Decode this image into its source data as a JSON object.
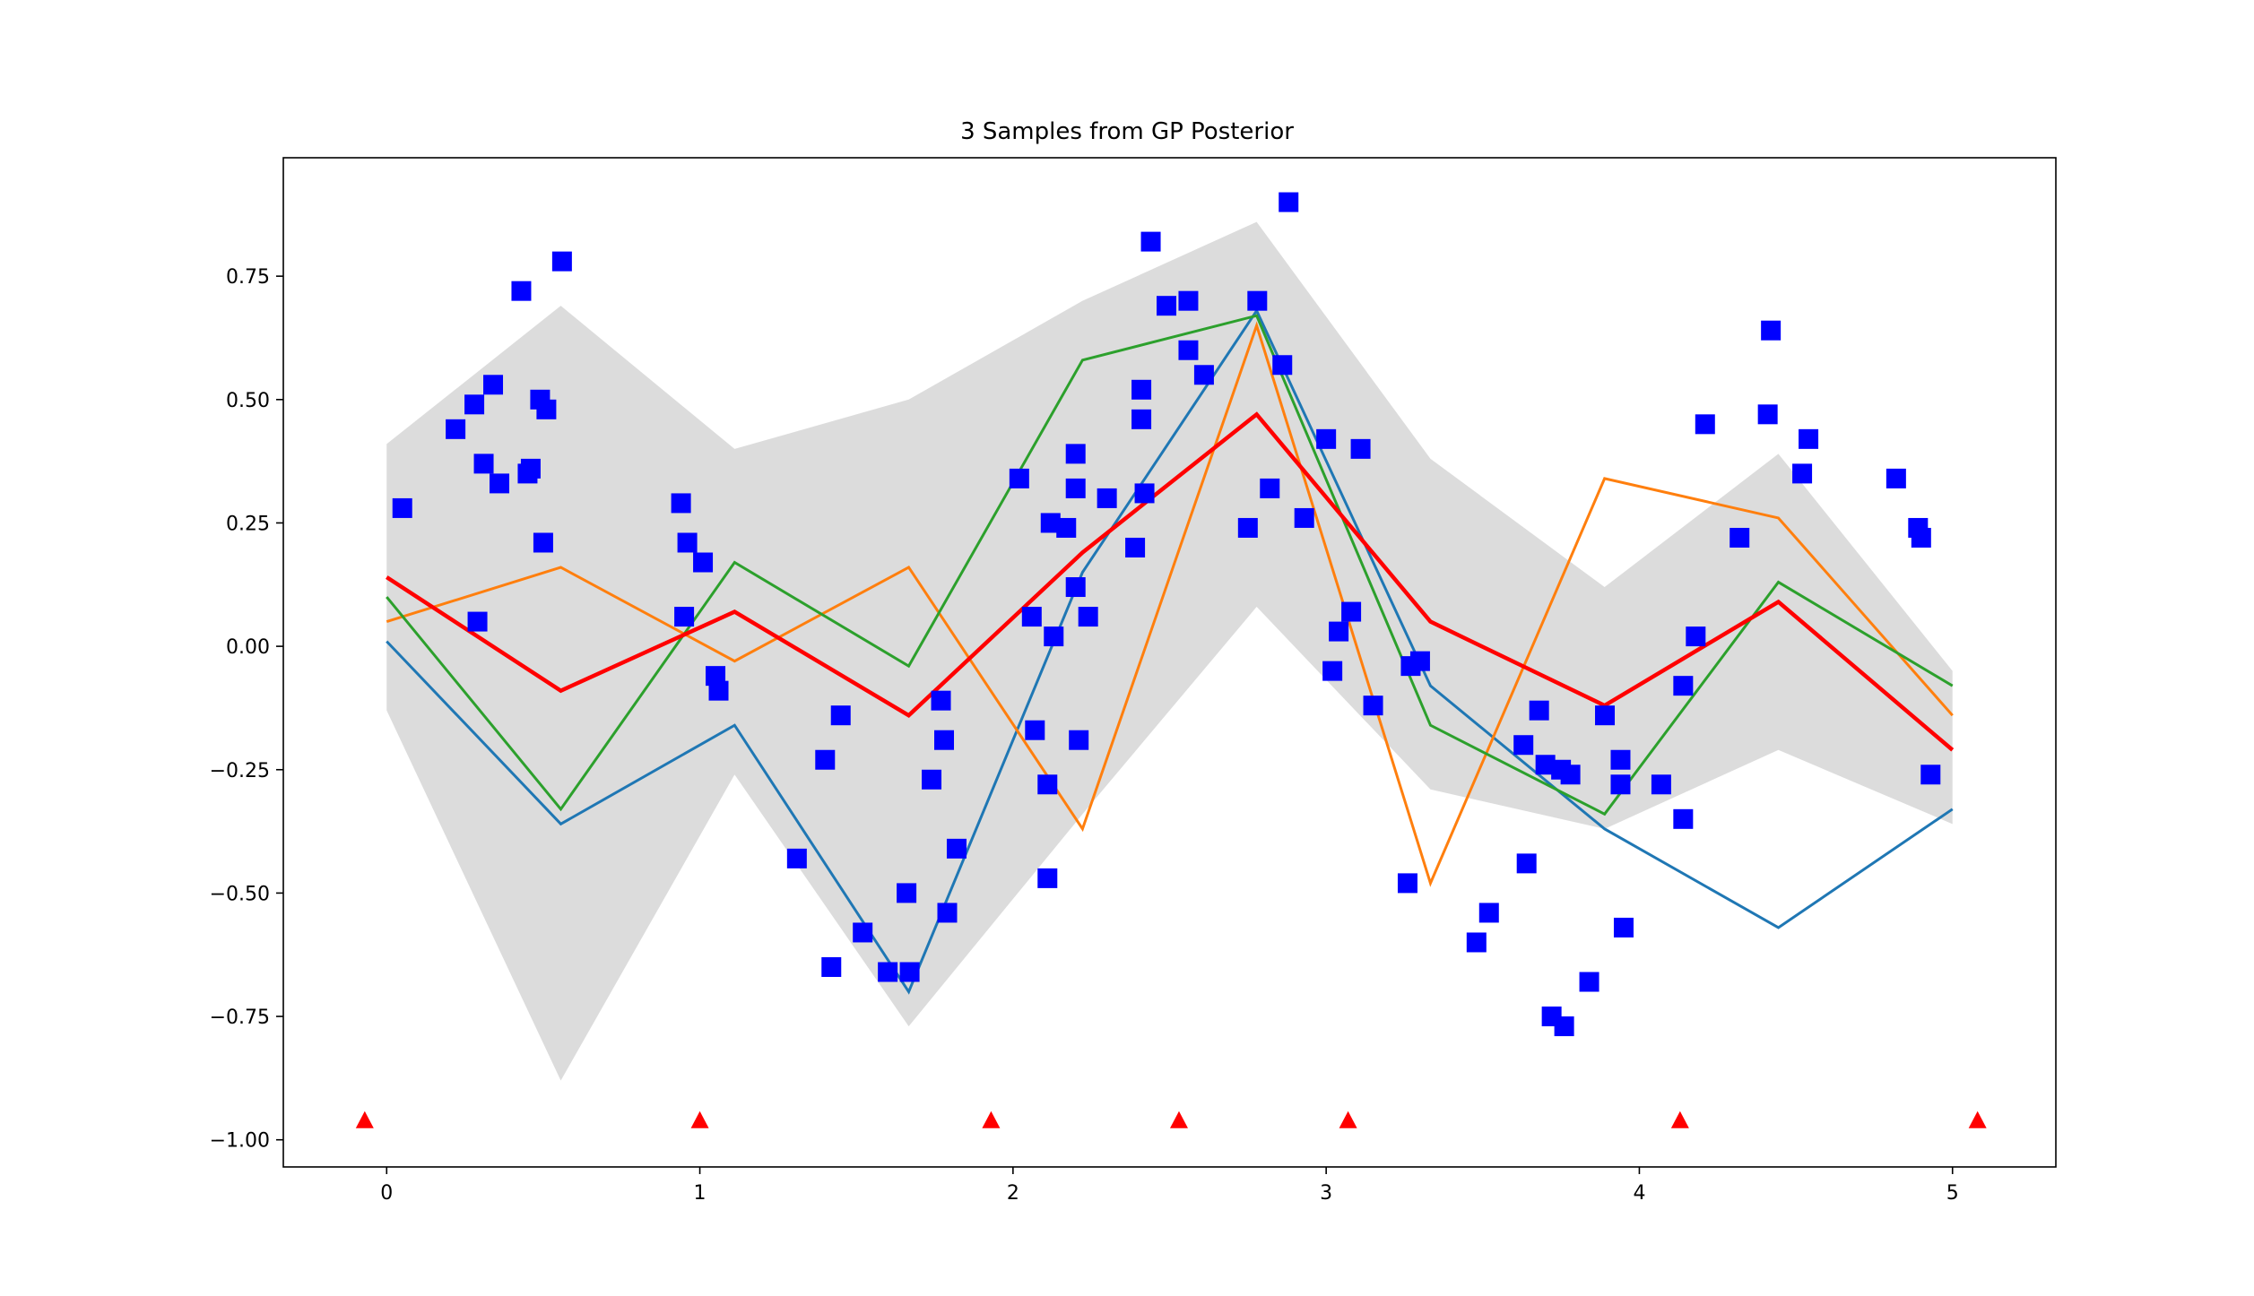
{
  "chart_data": {
    "type": "line",
    "title": "3 Samples from GP Posterior",
    "xlabel": "",
    "ylabel": "",
    "xlim": [
      -0.33,
      5.33
    ],
    "ylim": [
      -1.055,
      0.99
    ],
    "grid": false,
    "legend": "none",
    "xticks": [
      0,
      1,
      2,
      3,
      4,
      5
    ],
    "xtick_labels": [
      "0",
      "1",
      "2",
      "3",
      "4",
      "5"
    ],
    "yticks": [
      -1.0,
      -0.75,
      -0.5,
      -0.25,
      0.0,
      0.25,
      0.5,
      0.75
    ],
    "ytick_labels": [
      "−1.00",
      "−0.75",
      "−0.50",
      "−0.25",
      "0.00",
      "0.25",
      "0.50",
      "0.75"
    ],
    "x": [
      0.0,
      0.556,
      1.111,
      1.667,
      2.222,
      2.778,
      3.333,
      3.889,
      4.444,
      5.0
    ],
    "band": {
      "color": "#dcdcdc",
      "upper": [
        0.41,
        0.69,
        0.4,
        0.5,
        0.7,
        0.86,
        0.38,
        0.12,
        0.39,
        -0.05
      ],
      "lower": [
        -0.13,
        -0.88,
        -0.26,
        -0.77,
        -0.34,
        0.08,
        -0.29,
        -0.37,
        -0.21,
        -0.36
      ]
    },
    "series": [
      {
        "color": "#1f77b4",
        "width": 3,
        "values": [
          0.01,
          -0.36,
          -0.16,
          -0.7,
          0.15,
          0.68,
          -0.08,
          -0.37,
          -0.57,
          -0.33
        ]
      },
      {
        "color": "#ff7f0e",
        "width": 3,
        "values": [
          0.05,
          0.16,
          -0.03,
          0.16,
          -0.37,
          0.65,
          -0.48,
          0.34,
          0.26,
          -0.14
        ]
      },
      {
        "color": "#2ca02c",
        "width": 3,
        "values": [
          0.1,
          -0.33,
          0.17,
          -0.04,
          0.58,
          0.67,
          -0.16,
          -0.34,
          0.13,
          -0.08
        ]
      },
      {
        "color": "#ff0000",
        "width": 4.5,
        "values": [
          0.14,
          -0.09,
          0.07,
          -0.14,
          0.19,
          0.47,
          0.05,
          -0.12,
          0.09,
          -0.21
        ]
      }
    ],
    "scatter_squares": {
      "color": "#0000ff",
      "points": [
        [
          0.05,
          0.28
        ],
        [
          0.22,
          0.44
        ],
        [
          0.28,
          0.49
        ],
        [
          0.29,
          0.05
        ],
        [
          0.31,
          0.37
        ],
        [
          0.34,
          0.53
        ],
        [
          0.36,
          0.33
        ],
        [
          0.43,
          0.72
        ],
        [
          0.45,
          0.35
        ],
        [
          0.46,
          0.36
        ],
        [
          0.49,
          0.5
        ],
        [
          0.5,
          0.21
        ],
        [
          0.51,
          0.48
        ],
        [
          0.56,
          0.78
        ],
        [
          0.94,
          0.29
        ],
        [
          0.95,
          0.06
        ],
        [
          0.96,
          0.21
        ],
        [
          1.01,
          0.17
        ],
        [
          1.05,
          -0.06
        ],
        [
          1.06,
          -0.09
        ],
        [
          1.31,
          -0.43
        ],
        [
          1.4,
          -0.23
        ],
        [
          1.42,
          -0.65
        ],
        [
          1.45,
          -0.14
        ],
        [
          1.52,
          -0.58
        ],
        [
          1.6,
          -0.66
        ],
        [
          1.66,
          -0.5
        ],
        [
          1.67,
          -0.66
        ],
        [
          1.74,
          -0.27
        ],
        [
          1.77,
          -0.11
        ],
        [
          1.78,
          -0.19
        ],
        [
          1.79,
          -0.54
        ],
        [
          1.82,
          -0.41
        ],
        [
          2.02,
          0.34
        ],
        [
          2.06,
          0.06
        ],
        [
          2.07,
          -0.17
        ],
        [
          2.11,
          -0.47
        ],
        [
          2.11,
          -0.28
        ],
        [
          2.12,
          0.25
        ],
        [
          2.13,
          0.02
        ],
        [
          2.17,
          0.24
        ],
        [
          2.2,
          0.39
        ],
        [
          2.2,
          0.32
        ],
        [
          2.2,
          0.12
        ],
        [
          2.21,
          -0.19
        ],
        [
          2.24,
          0.06
        ],
        [
          2.3,
          0.3
        ],
        [
          2.39,
          0.2
        ],
        [
          2.41,
          0.52
        ],
        [
          2.41,
          0.46
        ],
        [
          2.42,
          0.31
        ],
        [
          2.44,
          0.82
        ],
        [
          2.49,
          0.69
        ],
        [
          2.56,
          0.6
        ],
        [
          2.56,
          0.7
        ],
        [
          2.61,
          0.55
        ],
        [
          2.75,
          0.24
        ],
        [
          2.78,
          0.7
        ],
        [
          2.82,
          0.32
        ],
        [
          2.86,
          0.57
        ],
        [
          2.88,
          0.9
        ],
        [
          2.93,
          0.26
        ],
        [
          3.0,
          0.42
        ],
        [
          3.02,
          -0.05
        ],
        [
          3.04,
          0.03
        ],
        [
          3.08,
          0.07
        ],
        [
          3.11,
          0.4
        ],
        [
          3.15,
          -0.12
        ],
        [
          3.26,
          -0.48
        ],
        [
          3.27,
          -0.04
        ],
        [
          3.3,
          -0.03
        ],
        [
          3.48,
          -0.6
        ],
        [
          3.52,
          -0.54
        ],
        [
          3.63,
          -0.2
        ],
        [
          3.64,
          -0.44
        ],
        [
          3.68,
          -0.13
        ],
        [
          3.7,
          -0.24
        ],
        [
          3.72,
          -0.75
        ],
        [
          3.75,
          -0.25
        ],
        [
          3.76,
          -0.77
        ],
        [
          3.78,
          -0.26
        ],
        [
          3.84,
          -0.68
        ],
        [
          3.89,
          -0.14
        ],
        [
          3.94,
          -0.28
        ],
        [
          3.94,
          -0.23
        ],
        [
          3.95,
          -0.57
        ],
        [
          4.07,
          -0.28
        ],
        [
          4.14,
          -0.35
        ],
        [
          4.14,
          -0.08
        ],
        [
          4.18,
          0.02
        ],
        [
          4.21,
          0.45
        ],
        [
          4.32,
          0.22
        ],
        [
          4.41,
          0.47
        ],
        [
          4.42,
          0.64
        ],
        [
          4.52,
          0.35
        ],
        [
          4.54,
          0.42
        ],
        [
          4.82,
          0.34
        ],
        [
          4.89,
          0.24
        ],
        [
          4.9,
          0.22
        ],
        [
          4.93,
          -0.26
        ]
      ]
    },
    "scatter_triangles": {
      "color": "#ff0000",
      "y": -0.96,
      "x": [
        -0.07,
        1.0,
        1.93,
        2.53,
        3.07,
        4.13,
        5.08
      ]
    }
  }
}
